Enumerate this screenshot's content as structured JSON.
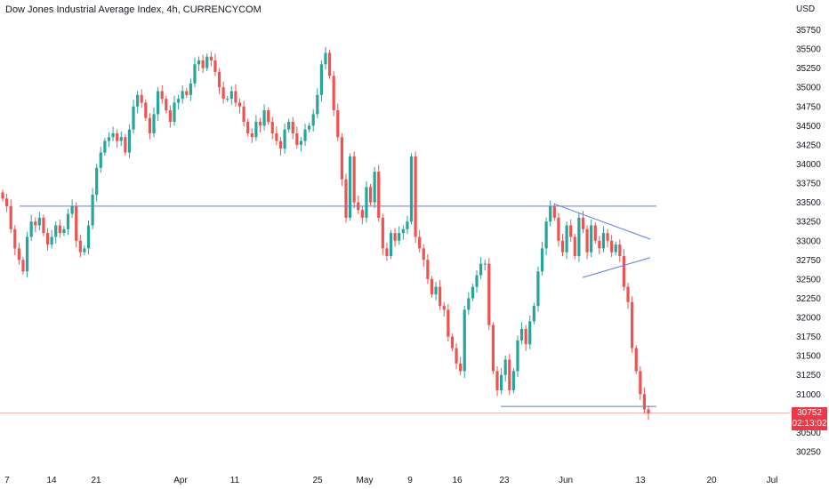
{
  "chart_title": "Dow Jones Industrial Average Index, 4h, CURRENCYCOM",
  "currency": "USD",
  "price_badge": {
    "price": "30752",
    "countdown": "02:13:02"
  },
  "colors": {
    "up": "#26a69a",
    "down": "#ef5350",
    "drawing": "#5b7fe0",
    "badge": "#f23645"
  },
  "chart_data": {
    "type": "line",
    "title": "",
    "xlabel": "",
    "ylabel": "",
    "x_ticks": [
      "7",
      "14",
      "21",
      "Apr",
      "11",
      "25",
      "May",
      "9",
      "16",
      "23",
      "Jun",
      "13",
      "20",
      "Jul"
    ],
    "y_ticks": [
      30250,
      30500,
      30750,
      31000,
      31250,
      31500,
      31750,
      32000,
      32250,
      32500,
      32750,
      33000,
      33250,
      33500,
      33750,
      34000,
      34250,
      34500,
      34750,
      35000,
      35250,
      35500,
      35750
    ],
    "ylim": [
      30150,
      35900
    ],
    "series": [
      {
        "values": [
          33550,
          33450,
          33150,
          32900,
          32750,
          32600,
          33050,
          33250,
          33200,
          33300,
          33100,
          32950,
          33050,
          33200,
          33100,
          33150,
          33350,
          33450,
          33000,
          32850,
          32900,
          33200,
          33600,
          33950,
          34150,
          34300,
          34350,
          34400,
          34300,
          34350,
          34150,
          34450,
          34750,
          34900,
          34800,
          34600,
          34400,
          34650,
          34950,
          34850,
          34700,
          34550,
          34800,
          34850,
          34950,
          34900,
          35050,
          35300,
          35350,
          35250,
          35400,
          35350,
          35200,
          35000,
          34850,
          34850,
          34950,
          34800,
          34750,
          34550,
          34400,
          34350,
          34550,
          34500,
          34700,
          34550,
          34400,
          34300,
          34200,
          34450,
          34550,
          34400,
          34250,
          34300,
          34450,
          34500,
          34650,
          34900,
          35300,
          35450,
          35150,
          34700,
          34350,
          33800,
          33300,
          34100,
          33500,
          33400,
          33300,
          33700,
          33500,
          33900,
          33300,
          32900,
          32800,
          33100,
          33000,
          33100,
          33150,
          33250,
          34100,
          33050,
          32900,
          32750,
          32500,
          32300,
          32400,
          32150,
          32100,
          31750,
          31600,
          31400,
          31300,
          32100,
          32250,
          32400,
          32550,
          32700,
          32700,
          31900,
          31300,
          31050,
          31250,
          31450,
          31050,
          31300,
          31700,
          31850,
          31650,
          31950,
          32150,
          32600,
          32900,
          33250,
          33450,
          33300,
          33000,
          32850,
          33200,
          33050,
          32800,
          33300,
          33150,
          32850,
          33200,
          33000,
          32900,
          33100,
          33000,
          32850,
          32950,
          32800,
          32400,
          32200,
          31600,
          31300,
          31000,
          30800,
          30752
        ]
      }
    ],
    "annotations": {
      "horizontal_resistance": 33450,
      "horizontal_support": 30840,
      "triangle_upper": [
        {
          "date": "May 31",
          "y": 33480
        },
        {
          "date": "Jun 13",
          "y": 33020
        }
      ],
      "triangle_lower": [
        {
          "date": "Jun 3",
          "y": 32520
        },
        {
          "date": "Jun 13",
          "y": 32780
        }
      ]
    },
    "grid": false,
    "legend": "none"
  }
}
